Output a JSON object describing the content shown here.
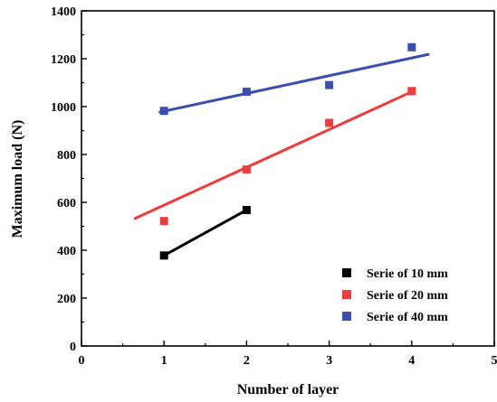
{
  "chart_data": {
    "type": "scatter",
    "title": "",
    "xlabel": "Number of layer",
    "ylabel": "Maximum load (N)",
    "xlim": [
      0,
      5
    ],
    "ylim": [
      0,
      1400
    ],
    "xticks": [
      "0",
      "1",
      "2",
      "3",
      "4",
      "5"
    ],
    "yticks": [
      "0",
      "200",
      "400",
      "600",
      "800",
      "1000",
      "1200",
      "1400"
    ],
    "grid": false,
    "legend_position": "bottom-right",
    "series": [
      {
        "name": "Serie of 10 mm",
        "color": "#000000",
        "points": [
          [
            1,
            378
          ],
          [
            2,
            568
          ]
        ],
        "fit_line": [
          [
            1,
            378
          ],
          [
            2,
            568
          ]
        ]
      },
      {
        "name": "Serie of 20 mm",
        "color": "#ef3b3b",
        "points": [
          [
            1,
            522
          ],
          [
            2,
            737
          ],
          [
            3,
            932
          ],
          [
            4,
            1065
          ]
        ],
        "fit_line": [
          [
            0.65,
            533
          ],
          [
            4,
            1062
          ]
        ]
      },
      {
        "name": "Serie of 40 mm",
        "color": "#3b4fb0",
        "points": [
          [
            1,
            982
          ],
          [
            2,
            1062
          ],
          [
            3,
            1090
          ],
          [
            4,
            1248
          ]
        ],
        "fit_line": [
          [
            0.95,
            977
          ],
          [
            4.2,
            1218
          ]
        ]
      }
    ]
  }
}
